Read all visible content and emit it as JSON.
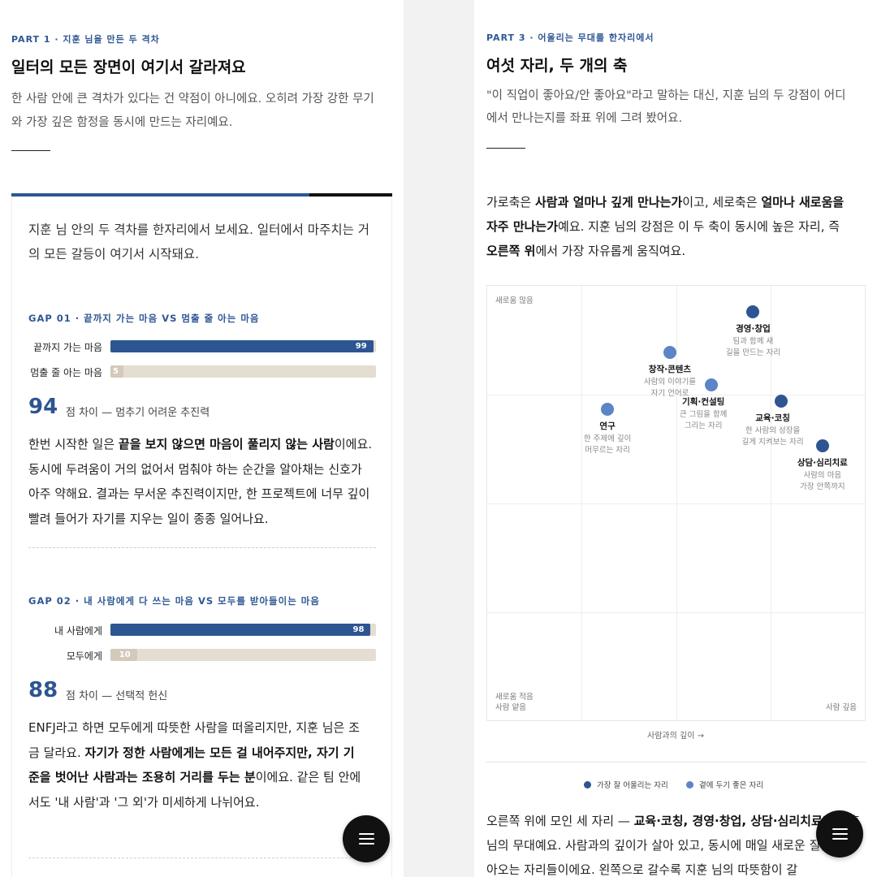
{
  "left": {
    "part_label": "PART 1 · 지훈 님을 만든 두 격차",
    "title": "일터의 모든 장면이 여기서 갈라져요",
    "intro": "한 사람 안에 큰 격차가 있다는 건 약점이 아니에요. 오히려 가장 강한 무기와 가장 깊은 함정을 동시에 만드는 자리예요.",
    "card_intro": "지훈 님 안의 두 격차를 한자리에서 보세요. 일터에서 마주치는 거의 모든 갈등이 여기서 시작돼요.",
    "gaps": [
      {
        "label": "GAP 01 · 끝까지 가는 마음 VS 멈출 줄 아는 마음",
        "bars": [
          {
            "name": "끝까지 가는 마음",
            "value": 99
          },
          {
            "name": "멈출 줄 아는 마음",
            "value": 5
          }
        ],
        "diff": "94",
        "diff_note": "점 차이 — 멈추기 어려운 추진력",
        "para": [
          {
            "t": "한번 시작한 일은 "
          },
          {
            "t": "끝을 보지 않으면 마음이 풀리지 않는 사람",
            "b": true
          },
          {
            "t": "이에요. 동시에 두려움이 거의 없어서 멈춰야 하는 순간을 알아채는 신호가 아주 약해요. 결과는 무서운 추진력이지만, 한 프로젝트에 너무 깊이 빨려 들어가 자기를 지우는 일이 종종 일어나요."
          }
        ]
      },
      {
        "label": "GAP 02 · 내 사람에게 다 쓰는 마음 VS 모두를 받아들이는 마음",
        "bars": [
          {
            "name": "내 사람에게",
            "value": 98
          },
          {
            "name": "모두에게",
            "value": 10
          }
        ],
        "diff": "88",
        "diff_note": "점 차이 — 선택적 헌신",
        "para": [
          {
            "t": "ENFJ라고 하면 모두에게 따뜻한 사람을 떠올리지만, 지훈 님은 조금 달라요. "
          },
          {
            "t": "자기가 정한 사람에게는 모든 걸 내어주지만, 자기 기준을 벗어난 사람과는 조용히 거리를 두는 분",
            "b": true
          },
          {
            "t": "이에요. 같은 팀 안에서도 '내 사람'과 '그 외'가 미세하게 나뉘어요."
          }
        ]
      }
    ]
  },
  "right": {
    "part_label": "PART 3 · 어울리는 무대를 한자리에서",
    "title": "여섯 자리, 두 개의 축",
    "intro": "\"이 직업이 좋아요/안 좋아요\"라고 말하는 대신, 지훈 님의 두 강점이 어디에서 만나는지를 좌표 위에 그려 봤어요.",
    "axis_para": [
      {
        "t": "가로축은 "
      },
      {
        "t": "사람과 얼마나 깊게 만나는가",
        "b": true
      },
      {
        "t": "이고, 세로축은 "
      },
      {
        "t": "얼마나 새로움을 자주 만나는가",
        "b": true
      },
      {
        "t": "예요. 지훈 님의 강점은 이 두 축이 동시에 높은 자리, 즉 "
      },
      {
        "t": "오른쪽 위",
        "b": true
      },
      {
        "t": "에서 가장 자유롭게 움직여요."
      }
    ],
    "outro": [
      {
        "t": "오른쪽 위에 모인 세 자리 — "
      },
      {
        "t": "교육·코칭, 경영·창업, 상담·심리치료",
        "b": true
      },
      {
        "t": "가 지훈 님의 무대예요. 사람과의 깊이가 살아 있고, 동시에 매일 새로운 질문이 찾아오는 자리들이에요. 왼쪽으로 갈수록 지훈 님의 따뜻함이 갈"
      }
    ]
  },
  "chart_data": {
    "type": "scatter",
    "xlabel": "사람과의 깊이 →",
    "ylabel": "",
    "corner_labels": {
      "top_left": "새로움 많음",
      "bottom_left": "새로움 적음\n사람 얕음",
      "bottom_right": "사람 깊음"
    },
    "xlim": [
      0,
      100
    ],
    "ylim": [
      0,
      100
    ],
    "grid": true,
    "legend_position": "bottom-center",
    "series": [
      {
        "name": "가장 잘 어울리는 자리",
        "color": "#2d5592"
      },
      {
        "name": "곁에 두기 좋은 자리",
        "color": "#5b85c6"
      }
    ],
    "points": [
      {
        "name": "경영·창업",
        "desc": "팀과 함께 새 길을 만드는 자리",
        "x": 72,
        "y": 97,
        "series": 0
      },
      {
        "name": "창작·콘텐츠",
        "desc": "사람의 이야기를 자기 언어로",
        "x": 48,
        "y": 87,
        "series": 1
      },
      {
        "name": "기획·컨설팅",
        "desc": "큰 그림을 함께 그리는 자리",
        "x": 60,
        "y": 79,
        "series": 1
      },
      {
        "name": "교육·코칭",
        "desc": "한 사람의 성장을 길게 지켜보는 자리",
        "x": 80,
        "y": 75,
        "series": 0
      },
      {
        "name": "연구",
        "desc": "한 주제에 깊이 머무르는 자리",
        "x": 30,
        "y": 73,
        "series": 1
      },
      {
        "name": "상담·심리치료",
        "desc": "사람의 마음 가장 안쪽까지",
        "x": 92,
        "y": 64,
        "series": 0
      }
    ]
  },
  "colors": {
    "accent": "#2d5592",
    "accent_light": "#5b85c6",
    "bar_track": "#e4ddd2",
    "bar_low": "#d4cab9"
  },
  "icons": {
    "fab": "hamburger-menu-icon"
  }
}
